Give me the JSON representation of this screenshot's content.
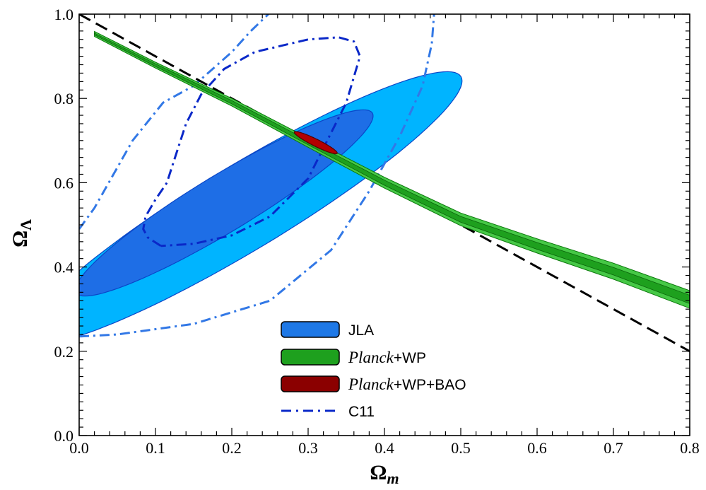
{
  "chart_data": {
    "type": "contour",
    "xlabel": "Ω",
    "xlabel_sub": "m",
    "ylabel": "Ω",
    "ylabel_sub": "Λ",
    "xlim": [
      0.0,
      0.8
    ],
    "ylim": [
      0.0,
      1.0
    ],
    "xticks": [
      "0.0",
      "0.1",
      "0.2",
      "0.3",
      "0.4",
      "0.5",
      "0.6",
      "0.7",
      "0.8"
    ],
    "yticks": [
      "0.0",
      "0.2",
      "0.4",
      "0.6",
      "0.8",
      "1.0"
    ],
    "legend_position": "bottom-center",
    "legend": [
      {
        "label_plain": "JLA",
        "color": "#1e78e6"
      },
      {
        "label_italic": "Planck",
        "label_plain": "+WP",
        "color": "#1ea01e"
      },
      {
        "label_italic": "Planck",
        "label_plain": "+WP+BAO",
        "color": "#8b0000"
      },
      {
        "label_plain": "C11",
        "color": "#0a28c8",
        "style": "dash-dot"
      }
    ],
    "series": [
      {
        "name": "JLA",
        "kind": "filled-contours",
        "levels": [
          {
            "level": "2sigma",
            "color": "#00b4ff",
            "center": [
              0.215,
              0.54
            ],
            "semi_major": 0.425,
            "semi_minor": 0.079,
            "angle_deg": 48.7
          },
          {
            "level": "1sigma",
            "color": "#1e6ee6",
            "center": [
              0.19,
              0.552
            ],
            "semi_major": 0.29,
            "semi_minor": 0.053,
            "angle_deg": 48.8
          }
        ]
      },
      {
        "name": "Planck+WP",
        "kind": "filled-band",
        "color": "#1ea01e",
        "center_line": [
          [
            0.02,
            0.953
          ],
          [
            0.1,
            0.879
          ],
          [
            0.2,
            0.791
          ],
          [
            0.3,
            0.695
          ],
          [
            0.4,
            0.6
          ],
          [
            0.5,
            0.513
          ],
          [
            0.6,
            0.45
          ],
          [
            0.7,
            0.39
          ],
          [
            0.8,
            0.323
          ]
        ],
        "half_width_outer": [
          0.006,
          0.007,
          0.009,
          0.011,
          0.013,
          0.015,
          0.017,
          0.019,
          0.021
        ],
        "half_width_inner": [
          0.002,
          0.003,
          0.004,
          0.005,
          0.006,
          0.007,
          0.008,
          0.009,
          0.01
        ]
      },
      {
        "name": "Planck+WP+BAO",
        "kind": "filled-contours",
        "color": "#b40000",
        "center": [
          0.31,
          0.695
        ],
        "semi_major": 0.038,
        "semi_minor": 0.007,
        "angle_deg": -43
      },
      {
        "name": "C11",
        "kind": "dash-dot-contours",
        "contours": [
          {
            "level": "1sigma",
            "color": "#0a28c8",
            "points": [
              [
                0.107,
                0.45
              ],
              [
                0.09,
                0.47
              ],
              [
                0.084,
                0.49
              ],
              [
                0.087,
                0.52
              ],
              [
                0.1,
                0.56
              ],
              [
                0.115,
                0.6
              ],
              [
                0.122,
                0.64
              ],
              [
                0.14,
                0.74
              ],
              [
                0.16,
                0.81
              ],
              [
                0.19,
                0.87
              ],
              [
                0.23,
                0.91
              ],
              [
                0.3,
                0.94
              ],
              [
                0.34,
                0.945
              ],
              [
                0.36,
                0.935
              ],
              [
                0.368,
                0.9
              ],
              [
                0.35,
                0.79
              ],
              [
                0.3,
                0.61
              ],
              [
                0.25,
                0.52
              ],
              [
                0.2,
                0.475
              ],
              [
                0.15,
                0.455
              ],
              [
                0.107,
                0.45
              ]
            ]
          },
          {
            "level": "2sigma",
            "color": "#3278e6",
            "points": [
              [
                0.0,
                0.235
              ],
              [
                0.05,
                0.24
              ],
              [
                0.15,
                0.265
              ],
              [
                0.25,
                0.32
              ],
              [
                0.33,
                0.44
              ],
              [
                0.38,
                0.58
              ],
              [
                0.42,
                0.71
              ],
              [
                0.45,
                0.83
              ],
              [
                0.462,
                0.93
              ],
              [
                0.465,
                1.0
              ]
            ]
          },
          {
            "level": "2sigma-left",
            "color": "#3278e6",
            "points": [
              [
                0.0,
                0.49
              ],
              [
                0.02,
                0.54
              ],
              [
                0.07,
                0.7
              ],
              [
                0.11,
                0.79
              ],
              [
                0.15,
                0.83
              ],
              [
                0.2,
                0.91
              ],
              [
                0.225,
                0.96
              ],
              [
                0.248,
                1.0
              ]
            ]
          }
        ]
      },
      {
        "name": "flat-universe",
        "kind": "dashed-line",
        "color": "#000000",
        "points": [
          [
            0.0,
            1.0
          ],
          [
            0.8,
            0.2
          ]
        ]
      }
    ]
  }
}
